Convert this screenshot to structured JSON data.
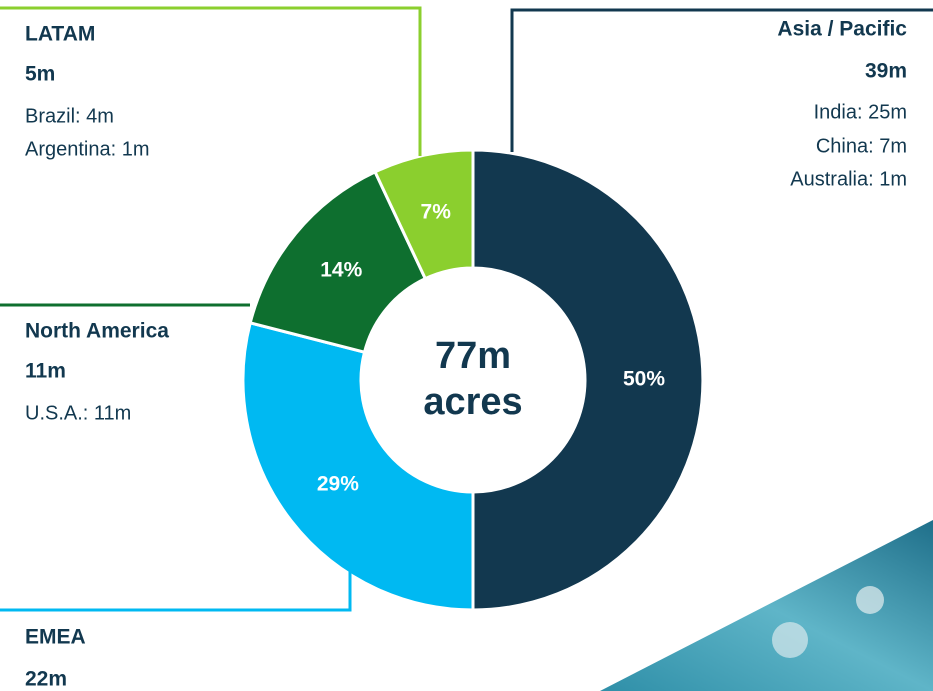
{
  "chart_data": {
    "type": "donut",
    "categories": [
      "Asia / Pacific",
      "EMEA",
      "North America",
      "LATAM"
    ],
    "values": [
      50,
      29,
      14,
      7
    ],
    "value_labels": [
      "50%",
      "29%",
      "14%",
      "7%"
    ],
    "colors": [
      "#12384f",
      "#00b9f2",
      "#0e6f2f",
      "#8bcf2e"
    ],
    "center_label": [
      "77m",
      "acres"
    ],
    "callouts": [
      {
        "total": "39m",
        "details": [
          "India: 25m",
          "China: 7m",
          "Australia: 1m"
        ]
      },
      {
        "total": "22m",
        "details": []
      },
      {
        "total": "11m",
        "details": [
          "U.S.A.: 11m"
        ]
      },
      {
        "total": "5m",
        "details": [
          "Brazil: 4m",
          "Argentina: 1m"
        ]
      }
    ]
  }
}
